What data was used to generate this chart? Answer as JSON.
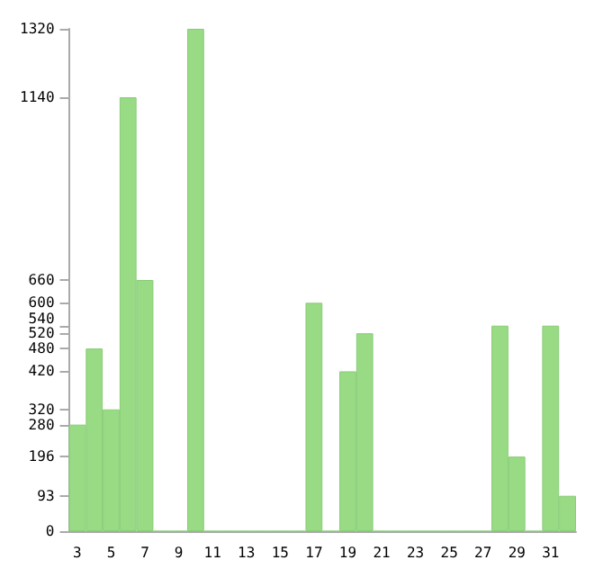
{
  "chart_data": {
    "type": "bar",
    "categories": [
      "3",
      null,
      "5",
      null,
      "7",
      null,
      "9",
      null,
      "11",
      null,
      "13",
      null,
      "15",
      null,
      "17",
      null,
      "19",
      null,
      "21",
      null,
      "23",
      null,
      "25",
      null,
      "27",
      null,
      "29",
      null,
      "31",
      null
    ],
    "values": [
      280,
      480,
      320,
      1140,
      660,
      0,
      0,
      1320,
      0,
      0,
      0,
      0,
      0,
      0,
      600,
      0,
      420,
      520,
      0,
      0,
      0,
      0,
      0,
      0,
      0,
      540,
      196,
      0,
      540,
      93
    ],
    "color": "#98db84",
    "ylim": [
      0,
      1320
    ],
    "yticks": [
      0,
      93,
      196,
      280,
      320,
      420,
      480,
      520,
      540,
      600,
      660,
      1140,
      1320
    ],
    "grid": false
  }
}
